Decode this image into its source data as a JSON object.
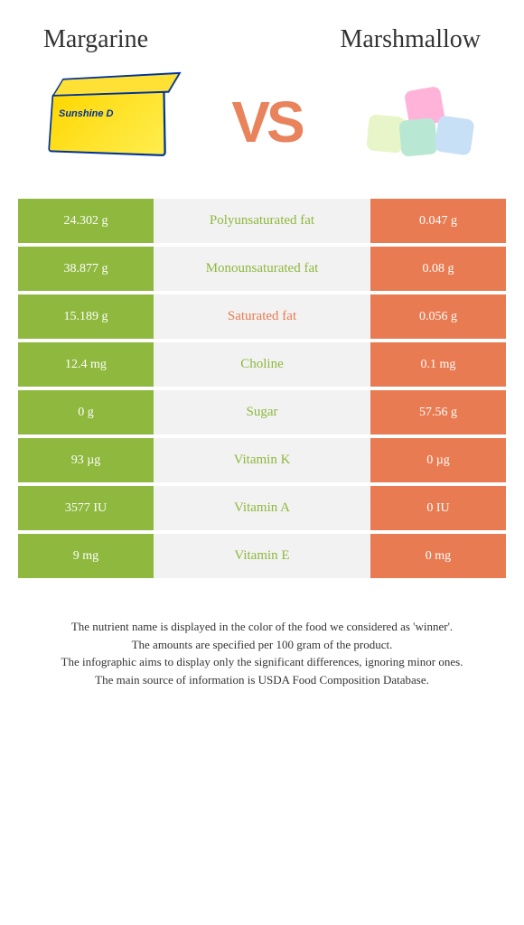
{
  "header": {
    "left": "Margarine",
    "right": "Marshmallow"
  },
  "vs": "VS",
  "colors": {
    "left_bg": "#8fb83e",
    "right_bg": "#e87b51",
    "mid_bg": "#f2f2f2",
    "label_green": "#8fb83e",
    "label_orange": "#e87b51"
  },
  "rows": [
    {
      "left": "24.302 g",
      "label": "Polyunsaturated fat",
      "right": "0.047 g",
      "winner": "left"
    },
    {
      "left": "38.877 g",
      "label": "Monounsaturated fat",
      "right": "0.08 g",
      "winner": "left"
    },
    {
      "left": "15.189 g",
      "label": "Saturated fat",
      "right": "0.056 g",
      "winner": "right"
    },
    {
      "left": "12.4 mg",
      "label": "Choline",
      "right": "0.1 mg",
      "winner": "left"
    },
    {
      "left": "0 g",
      "label": "Sugar",
      "right": "57.56 g",
      "winner": "left"
    },
    {
      "left": "93 µg",
      "label": "Vitamin K",
      "right": "0 µg",
      "winner": "left"
    },
    {
      "left": "3577 IU",
      "label": "Vitamin A",
      "right": "0 IU",
      "winner": "left"
    },
    {
      "left": "9 mg",
      "label": "Vitamin E",
      "right": "0 mg",
      "winner": "left"
    }
  ],
  "footer": {
    "line1": "The nutrient name is displayed in the color of the food we considered as 'winner'.",
    "line2": "The amounts are specified per 100 gram of the product.",
    "line3": "The infographic aims to display only the significant differences, ignoring minor ones.",
    "line4": "The main source of information is USDA Food Composition Database."
  },
  "margarine_label": "Sunshine D"
}
